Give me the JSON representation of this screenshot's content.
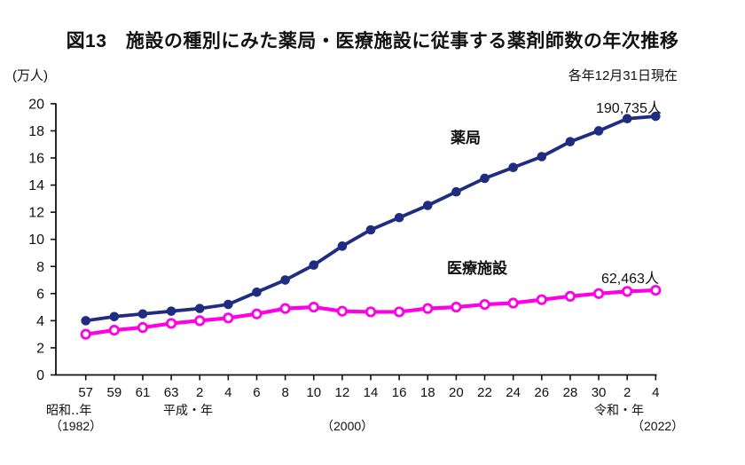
{
  "header": {
    "unit_label": "(万人)",
    "date_note": "各年12月31日現在"
  },
  "chart_data": {
    "type": "line",
    "title": "図13　施設の種別にみた薬局・医療施設に従事する薬剤師数の年次推移",
    "y_axis": {
      "unit": "万人",
      "ticks": [
        0,
        2,
        4,
        6,
        8,
        10,
        12,
        14,
        16,
        18,
        20
      ],
      "range": [
        0,
        20
      ]
    },
    "x_axis": {
      "tick_labels": [
        "57",
        "59",
        "61",
        "63",
        "2",
        "4",
        "6",
        "8",
        "10",
        "12",
        "14",
        "16",
        "18",
        "20",
        "22",
        "24",
        "26",
        "28",
        "30",
        "2",
        "4"
      ],
      "era_markers": [
        {
          "era_label": "昭和‥年",
          "year_label": "（1982）"
        },
        {
          "era_label": "平成・年",
          "year_label": "（2000）"
        },
        {
          "era_label": "令和・年",
          "year_label": "（2022）"
        }
      ]
    },
    "series": [
      {
        "name": "薬局",
        "color": "#1f2c80",
        "marker": "filled-circle",
        "values": [
          4.0,
          4.3,
          4.5,
          4.7,
          4.9,
          5.2,
          6.1,
          7.0,
          8.1,
          9.5,
          10.7,
          11.6,
          12.5,
          13.5,
          14.5,
          15.3,
          16.1,
          17.2,
          18.0,
          18.9,
          19.0735
        ],
        "end_annotation": "190,735人"
      },
      {
        "name": "医療施設",
        "color": "#ff00e6",
        "marker": "open-circle",
        "values": [
          3.0,
          3.3,
          3.5,
          3.8,
          4.0,
          4.2,
          4.5,
          4.9,
          5.0,
          4.7,
          4.65,
          4.65,
          4.9,
          5.0,
          5.2,
          5.3,
          5.55,
          5.8,
          6.0,
          6.16,
          6.2463
        ],
        "end_annotation": "62,463人"
      }
    ],
    "grid": false,
    "legend_position": "inline-labels"
  }
}
